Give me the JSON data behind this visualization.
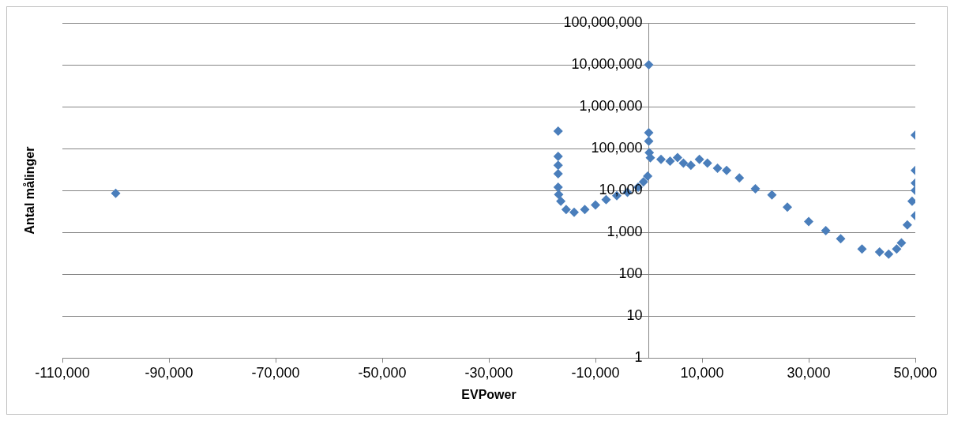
{
  "chart_data": {
    "type": "scatter",
    "xlabel": "EVPower",
    "ylabel": "Antal målinger",
    "log": "y",
    "grid": "y",
    "legend": false,
    "marker": "diamond",
    "xlim": [
      -110000,
      50000
    ],
    "ylim": [
      1,
      100000000
    ],
    "xticks": [
      {
        "value": -110000,
        "label": "-110,000"
      },
      {
        "value": -90000,
        "label": "-90,000"
      },
      {
        "value": -70000,
        "label": "-70,000"
      },
      {
        "value": -50000,
        "label": "-50,000"
      },
      {
        "value": -30000,
        "label": "-30,000"
      },
      {
        "value": -10000,
        "label": "-10,000"
      },
      {
        "value": 10000,
        "label": "10,000"
      },
      {
        "value": 30000,
        "label": "30,000"
      },
      {
        "value": 50000,
        "label": "50,000"
      }
    ],
    "yticks": [
      1,
      10,
      100,
      {
        "value": 1000,
        "label": "1,000"
      },
      {
        "value": 10000,
        "label": "10,000"
      },
      {
        "value": 100000,
        "label": "100,000"
      },
      {
        "value": 1000000,
        "label": "1,000,000"
      },
      {
        "value": 10000000,
        "label": "10,000,000"
      },
      {
        "value": 100000000,
        "label": "100,000,000"
      }
    ],
    "series": [
      {
        "color": "#4a7ebb",
        "x": [
          -100000,
          -17000,
          -17000,
          -17000,
          -17000,
          -17000,
          -16900,
          -16500,
          -15500,
          -14000,
          -12000,
          -10000,
          -8000,
          -6000,
          -4000,
          -2000,
          -1000,
          -200,
          0,
          0,
          0,
          100,
          300,
          2300,
          4000,
          5400,
          6500,
          7900,
          9500,
          11000,
          12900,
          14600,
          17000,
          20000,
          23100,
          26000,
          30000,
          33200,
          36000,
          40000,
          43300,
          45000,
          46500,
          47400,
          48500,
          49400,
          50000,
          50000,
          50000,
          50000,
          50000
        ],
        "values": [
          8500,
          260000,
          65000,
          40000,
          25000,
          12000,
          8000,
          5500,
          3500,
          3000,
          3500,
          4500,
          6000,
          7500,
          9000,
          12000,
          16000,
          22000,
          10000000,
          240000,
          150000,
          80000,
          60000,
          55000,
          50000,
          61000,
          45000,
          40000,
          55000,
          45000,
          34000,
          30000,
          20000,
          11000,
          7800,
          4000,
          1800,
          1100,
          700,
          400,
          340,
          300,
          400,
          560,
          1500,
          5500,
          10000,
          15000,
          30000,
          210000,
          2500
        ]
      }
    ]
  }
}
